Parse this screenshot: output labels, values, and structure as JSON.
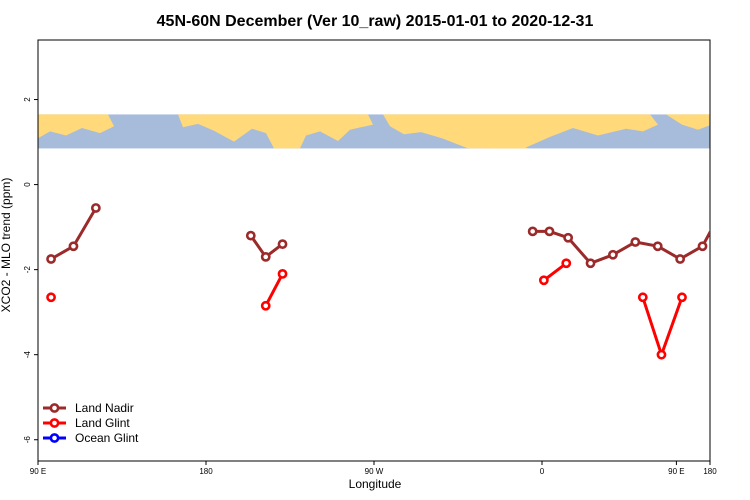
{
  "chart_data": {
    "type": "line",
    "title": "45N-60N December (Ver 10_raw)   2015-01-01 to 2020-12-31",
    "xlabel": "Longitude",
    "ylabel": "XCO2 - MLO trend (ppm)",
    "xlim": [
      -90,
      270
    ],
    "ylim": [
      -6.5,
      3.4
    ],
    "x_ticks": [
      {
        "value": -90,
        "label": "90 E"
      },
      {
        "value": 0,
        "label": "180"
      },
      {
        "value": 90,
        "label": "90 W"
      },
      {
        "value": 180,
        "label": "0"
      },
      {
        "value": 252,
        "label": "90 E"
      },
      {
        "value": 270,
        "label": "180"
      }
    ],
    "y_ticks": [
      {
        "value": 2,
        "label": "2"
      },
      {
        "value": 0,
        "label": "0"
      },
      {
        "value": -2,
        "label": "-2"
      },
      {
        "value": -4,
        "label": "-4"
      },
      {
        "value": -6,
        "label": "-6"
      }
    ],
    "map_band": {
      "ymin": 0.85,
      "ymax": 1.65,
      "land_color": "#FFD97A",
      "ocean_color": "#A7BCDA"
    },
    "legend_position": "bottom-left",
    "series": [
      {
        "name": "Land Nadir",
        "color": "#9B2A2A",
        "segments": [
          [
            [
              -83,
              -1.75
            ],
            [
              -71,
              -1.45
            ],
            [
              -59,
              -0.55
            ]
          ],
          [
            [
              24,
              -1.2
            ],
            [
              32,
              -1.7
            ],
            [
              41,
              -1.4
            ]
          ],
          [
            [
              175,
              -1.1
            ],
            [
              184,
              -1.1
            ],
            [
              194,
              -1.25
            ],
            [
              206,
              -1.85
            ],
            [
              218,
              -1.65
            ],
            [
              230,
              -1.35
            ],
            [
              242,
              -1.45
            ],
            [
              254,
              -1.75
            ],
            [
              266,
              -1.45
            ],
            [
              277,
              -0.55
            ]
          ]
        ]
      },
      {
        "name": "Land Glint",
        "color": "#FF0000",
        "segments": [
          [
            [
              -83,
              -2.65
            ]
          ],
          [
            [
              32,
              -2.85
            ],
            [
              41,
              -2.1
            ]
          ],
          [
            [
              181,
              -2.25
            ],
            [
              193,
              -1.85
            ]
          ],
          [
            [
              234,
              -2.65
            ],
            [
              244,
              -4.0
            ],
            [
              255,
              -2.65
            ]
          ]
        ]
      },
      {
        "name": "Ocean Glint",
        "color": "#0000FF",
        "segments": []
      }
    ]
  }
}
